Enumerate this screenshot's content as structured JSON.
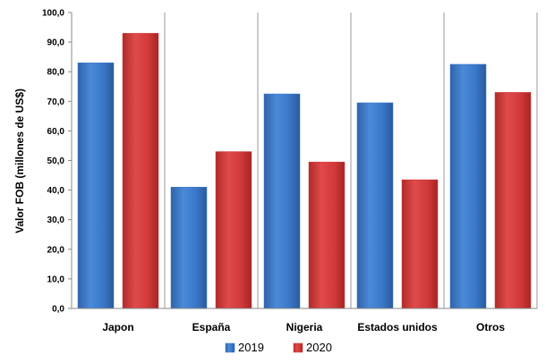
{
  "chart_data": {
    "type": "bar",
    "title": "",
    "xlabel": "",
    "ylabel": "Valor FOB (millones de US$)",
    "categories": [
      "Japon",
      "España",
      "Nigeria",
      "Estados unidos",
      "Otros"
    ],
    "series": [
      {
        "name": "2019",
        "values": [
          83.0,
          41.0,
          72.5,
          69.5,
          82.5
        ],
        "color": "#3a78c9"
      },
      {
        "name": "2020",
        "values": [
          93.0,
          53.0,
          49.5,
          43.5,
          73.0
        ],
        "color": "#d23a3a"
      }
    ],
    "ylim": [
      0,
      100
    ],
    "yticks": [
      "0,0",
      "10,0",
      "20,0",
      "30,0",
      "40,0",
      "50,0",
      "60,0",
      "70,0",
      "80,0",
      "90,0",
      "100,0"
    ],
    "legend_position": "bottom",
    "grid": "vertical separators between categories"
  }
}
